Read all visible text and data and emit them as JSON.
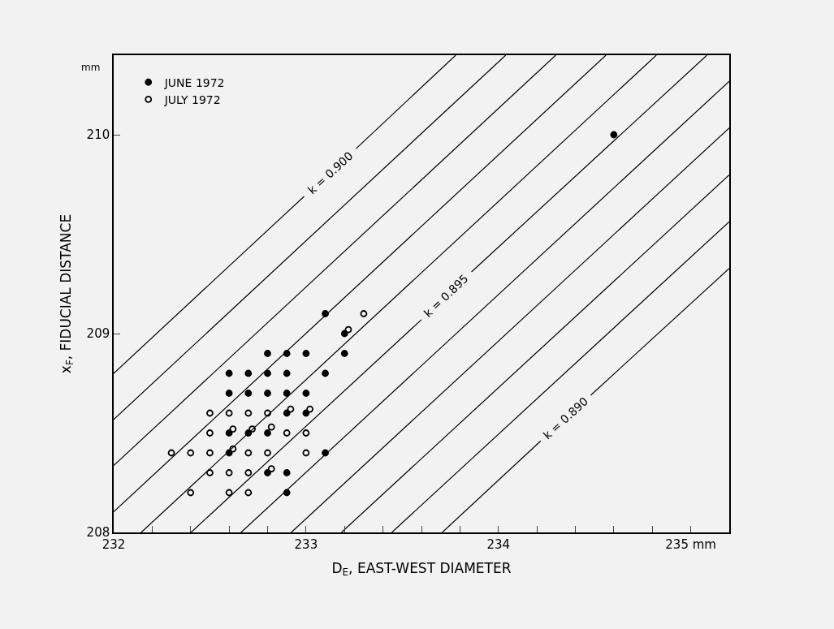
{
  "chart_data": {
    "type": "scatter",
    "xlabel": "D$_{E}$, EAST-WEST DIAMETER",
    "ylabel": "x$_{F}$, FIDUCIAL DISTANCE",
    "xlim": [
      232,
      235.2
    ],
    "ylim": [
      208,
      210.4
    ],
    "xticks": [
      232,
      {
        "value": 232.2,
        "label": null
      },
      {
        "value": 232.4,
        "label": null
      },
      {
        "value": 232.6,
        "label": null
      },
      {
        "value": 232.8,
        "label": null
      },
      233,
      {
        "value": 233.2,
        "label": null
      },
      {
        "value": 233.4,
        "label": null
      },
      {
        "value": 233.6,
        "label": null
      },
      {
        "value": 233.8,
        "label": null
      },
      234,
      {
        "value": 234.2,
        "label": null
      },
      {
        "value": 234.4,
        "label": null
      },
      {
        "value": 234.6,
        "label": null
      },
      {
        "value": 234.8,
        "label": null
      },
      {
        "value": 235,
        "label": "235 mm"
      }
    ],
    "yticks": [
      208,
      209,
      210
    ],
    "grid": false,
    "legend": "top left",
    "series": [
      {
        "name": "JUNE 1972",
        "marker": "circle",
        "color": "#000000",
        "x": [
          233.1,
          233.2,
          233.2,
          232.8,
          232.9,
          233.0,
          232.6,
          232.7,
          232.8,
          232.9,
          233.1,
          232.6,
          232.7,
          232.8,
          232.9,
          233.0,
          232.9,
          233.0,
          232.6,
          232.7,
          232.8,
          232.6,
          233.1,
          232.8,
          232.9,
          232.9,
          234.6
        ],
        "values": [
          209.1,
          209.0,
          208.9,
          208.9,
          208.9,
          208.9,
          208.8,
          208.8,
          208.8,
          208.8,
          208.8,
          208.7,
          208.7,
          208.7,
          208.7,
          208.7,
          208.6,
          208.6,
          208.5,
          208.5,
          208.5,
          208.4,
          208.4,
          208.3,
          208.3,
          208.2,
          210.0
        ]
      },
      {
        "name": "JULY 1972",
        "marker": "circle-open",
        "color": "#000000",
        "x": [
          233.3,
          233.22,
          232.5,
          232.6,
          232.7,
          232.8,
          232.92,
          233.02,
          232.5,
          232.62,
          232.72,
          232.82,
          232.9,
          233.0,
          232.3,
          232.4,
          232.5,
          232.62,
          232.7,
          232.8,
          233.0,
          232.5,
          232.6,
          232.7,
          232.82,
          232.4,
          232.6,
          232.7
        ],
        "values": [
          209.1,
          209.02,
          208.6,
          208.6,
          208.6,
          208.6,
          208.62,
          208.62,
          208.5,
          208.52,
          208.52,
          208.53,
          208.5,
          208.5,
          208.4,
          208.4,
          208.4,
          208.42,
          208.4,
          208.4,
          208.4,
          208.3,
          208.3,
          208.3,
          208.32,
          208.2,
          208.2,
          208.2
        ]
      },
      {
        "name": "k = 0.900",
        "type": "line",
        "color": "#000000",
        "x": [
          232,
          232.99,
          233.1,
          233.26,
          233.778
        ],
        "values": [
          208.8,
          209.69,
          null,
          209.93,
          210.4
        ]
      },
      {
        "type": "line",
        "color": "#000000",
        "x": [
          232,
          234.038
        ],
        "values": [
          208.568,
          210.4
        ]
      },
      {
        "type": "line",
        "color": "#000000",
        "x": [
          232,
          234.298
        ],
        "values": [
          208.336,
          210.4
        ]
      },
      {
        "type": "line",
        "color": "#000000",
        "x": [
          232,
          234.559
        ],
        "values": [
          208.104,
          210.4
        ]
      },
      {
        "type": "line",
        "color": "#000000",
        "x": [
          232.143,
          234.821
        ],
        "values": [
          208,
          210.4
        ]
      },
      {
        "name": "k = 0.895",
        "type": "line",
        "color": "#000000",
        "x": [
          232.402,
          233.6,
          233.7,
          233.86,
          235.084
        ],
        "values": [
          208,
          209.07,
          null,
          209.31,
          210.4
        ]
      },
      {
        "type": "line",
        "color": "#000000",
        "x": [
          232.662,
          235.2
        ],
        "values": [
          208,
          210.269
        ]
      },
      {
        "type": "line",
        "color": "#000000",
        "x": [
          232.923,
          235.2
        ],
        "values": [
          208,
          210.034
        ]
      },
      {
        "type": "line",
        "color": "#000000",
        "x": [
          233.184,
          235.2
        ],
        "values": [
          208,
          209.798
        ]
      },
      {
        "type": "line",
        "color": "#000000",
        "x": [
          233.446,
          235.2
        ],
        "values": [
          208,
          209.563
        ]
      },
      {
        "name": "k = 0.890",
        "type": "line",
        "color": "#000000",
        "x": [
          233.708,
          234.22,
          234.3,
          234.48,
          235.2
        ],
        "values": [
          208,
          208.46,
          null,
          208.69,
          209.328
        ]
      }
    ],
    "annotations": [
      "mm"
    ]
  }
}
